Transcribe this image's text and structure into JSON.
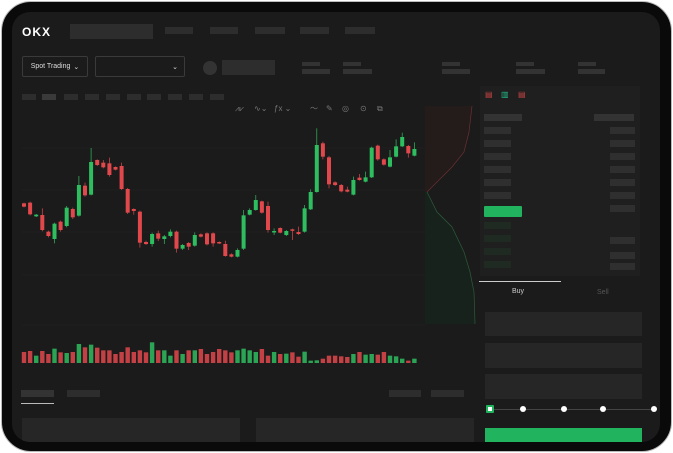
{
  "header": {
    "logo": "OKX"
  },
  "toolbar": {
    "market_selector": "Spot Trading",
    "icons": [
      "candle-type-icon",
      "chart-type-icon",
      "indicator-icon",
      "line-tool-icon",
      "pencil-icon",
      "circle-icon",
      "settings-icon",
      "fullscreen-icon"
    ]
  },
  "order_form": {
    "tabs": [
      {
        "label": "Buy",
        "active": true
      },
      {
        "label": "Sell",
        "active": false
      }
    ],
    "slider_value_percent": 0
  },
  "colors": {
    "up": "#2ebd5f",
    "down": "#e0484b",
    "buy_button": "#22b35e",
    "background": "#1b1b1b"
  },
  "chart_data": {
    "type": "candlestick",
    "candles": [
      [
        750,
        752,
        738,
        740
      ],
      [
        752,
        755,
        714,
        717
      ],
      [
        711,
        718,
        709,
        716
      ],
      [
        715,
        735,
        666,
        670
      ],
      [
        665,
        668,
        648,
        652
      ],
      [
        643,
        692,
        630,
        689
      ],
      [
        695,
        698,
        665,
        670
      ],
      [
        682,
        742,
        678,
        737
      ],
      [
        733,
        737,
        703,
        708
      ],
      [
        713,
        832,
        710,
        805
      ],
      [
        803,
        812,
        770,
        774
      ],
      [
        776,
        916,
        774,
        874
      ],
      [
        880,
        882,
        862,
        865
      ],
      [
        872,
        880,
        855,
        858
      ],
      [
        870,
        887,
        830,
        835
      ],
      [
        859,
        861,
        849,
        851
      ],
      [
        862,
        872,
        790,
        793
      ],
      [
        793,
        796,
        718,
        722
      ],
      [
        733,
        735,
        716,
        727
      ],
      [
        725,
        728,
        617,
        632
      ],
      [
        634,
        638,
        625,
        628
      ],
      [
        628,
        662,
        620,
        658
      ],
      [
        660,
        668,
        637,
        644
      ],
      [
        643,
        655,
        628,
        651
      ],
      [
        652,
        672,
        648,
        665
      ],
      [
        665,
        668,
        602,
        614
      ],
      [
        614,
        628,
        610,
        625
      ],
      [
        631,
        634,
        610,
        620
      ],
      [
        623,
        663,
        620,
        655
      ],
      [
        657,
        660,
        648,
        650
      ],
      [
        660,
        663,
        624,
        627
      ],
      [
        660,
        663,
        620,
        630
      ],
      [
        634,
        636,
        628,
        630
      ],
      [
        628,
        638,
        590,
        592
      ],
      [
        597,
        600,
        588,
        590
      ],
      [
        590,
        615,
        588,
        610
      ],
      [
        614,
        730,
        610,
        714
      ],
      [
        716,
        735,
        714,
        730
      ],
      [
        730,
        775,
        728,
        760
      ],
      [
        756,
        758,
        719,
        722
      ],
      [
        742,
        755,
        662,
        670
      ],
      [
        663,
        675,
        655,
        667
      ],
      [
        676,
        678,
        660,
        662
      ],
      [
        655,
        670,
        652,
        667
      ],
      [
        672,
        674,
        640,
        670
      ],
      [
        664,
        680,
        655,
        658
      ],
      [
        665,
        745,
        662,
        735
      ],
      [
        732,
        792,
        730,
        784
      ],
      [
        784,
        975,
        782,
        925
      ],
      [
        930,
        935,
        882,
        890
      ],
      [
        888,
        892,
        795,
        807
      ],
      [
        813,
        816,
        802,
        805
      ],
      [
        805,
        808,
        783,
        786
      ],
      [
        791,
        800,
        783,
        785
      ],
      [
        776,
        830,
        774,
        820
      ],
      [
        827,
        838,
        818,
        820
      ],
      [
        815,
        845,
        813,
        828
      ],
      [
        828,
        920,
        826,
        917
      ],
      [
        923,
        926,
        878,
        882
      ],
      [
        882,
        885,
        863,
        866
      ],
      [
        860,
        910,
        858,
        888
      ],
      [
        890,
        942,
        888,
        921
      ],
      [
        921,
        962,
        919,
        949
      ],
      [
        922,
        925,
        887,
        900
      ],
      [
        893,
        933,
        891,
        913
      ]
    ],
    "candle_fields": [
      "open",
      "high",
      "low",
      "close"
    ],
    "volume": [
      33,
      36,
      22,
      36,
      27,
      43,
      32,
      30,
      33,
      57,
      47,
      55,
      46,
      38,
      38,
      27,
      33,
      47,
      33,
      38,
      32,
      62,
      38,
      38,
      22,
      38,
      27,
      38,
      38,
      42,
      27,
      33,
      42,
      38,
      32,
      38,
      43,
      38,
      33,
      42,
      22,
      33,
      27,
      28,
      32,
      19,
      34,
      7,
      8,
      13,
      22,
      22,
      20,
      18,
      27,
      33,
      25,
      27,
      25,
      33,
      22,
      20,
      13,
      7,
      13
    ]
  }
}
